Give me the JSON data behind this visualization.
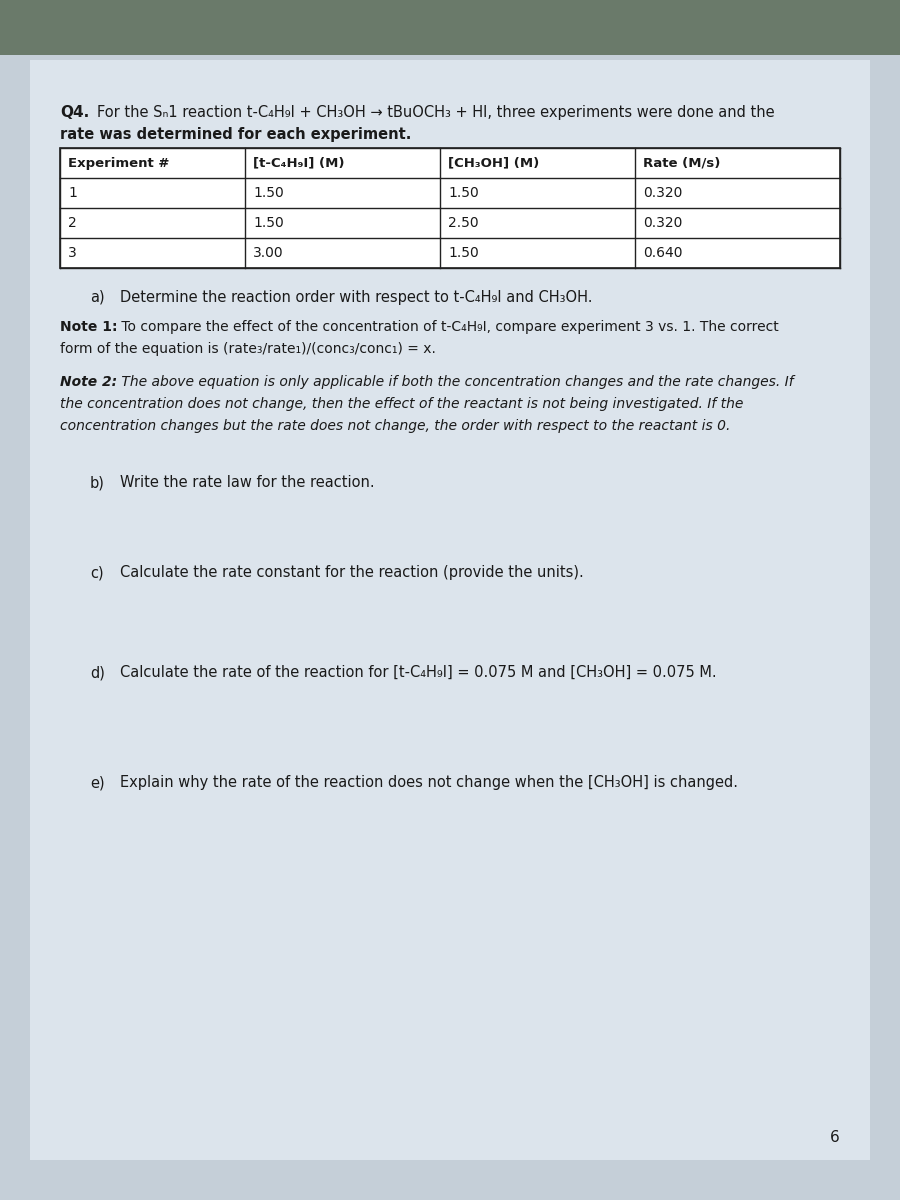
{
  "bg_top_color": "#8a9aaa",
  "bg_paper_color": "#c8d4e0",
  "paper_color": "#d8e0ea",
  "q4_label": "Q4.",
  "q4_intro": "        For the Sₙ1 reaction t-C₄H₉I + CH₃OH → tBuOCH₃ + HI, three experiments were done and the",
  "q4_intro2": "rate was determined for each experiment.",
  "table_headers": [
    "Experiment #",
    "[t-C₄H₉I] (M)",
    "[CH₃OH] (M)",
    "Rate (M/s)"
  ],
  "table_rows": [
    [
      "1",
      "1.50",
      "1.50",
      "0.320"
    ],
    [
      "2",
      "1.50",
      "2.50",
      "0.320"
    ],
    [
      "3",
      "3.00",
      "1.50",
      "0.640"
    ]
  ],
  "part_a_label": "a)",
  "part_a_text": "Determine the reaction order with respect to t-C₄H₉I and CH₃OH.",
  "note1_label": "Note 1:",
  "note1_text": " To compare the effect of the concentration of t-C₄H₉I, compare experiment 3 vs. 1. The correct",
  "note1_text2": "form of the equation is (rate₃/rate₁)/(conc₃/conc₁) = x.",
  "note2_label": "Note 2:",
  "note2_text": " The above equation is only applicable if both the concentration changes and the rate changes. If",
  "note2_text2": "the concentration does not change, then the effect of the reactant is not being investigated. If the",
  "note2_text3": "concentration changes but the rate does not change, the order with respect to the reactant is 0.",
  "part_b_label": "b)",
  "part_b_text": "Write the rate law for the reaction.",
  "part_c_label": "c)",
  "part_c_text": "Calculate the rate constant for the reaction (provide the units).",
  "part_d_label": "d)",
  "part_d_text": "Calculate the rate of the reaction for [t-C₄H₉I] = 0.075 M and [CH₃OH] = 0.075 M.",
  "part_e_label": "e)",
  "part_e_text": "Explain why the rate of the reaction does not change when the [CH₃OH] is changed.",
  "page_number": "6",
  "text_color": "#1a1a1a"
}
